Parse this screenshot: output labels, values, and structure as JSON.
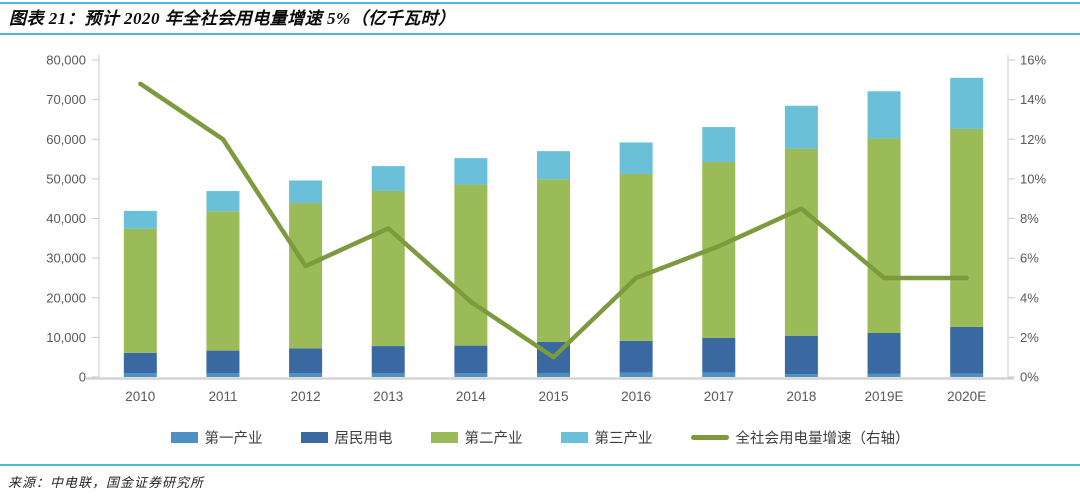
{
  "header": {
    "title": "图表 21：预计 2020 年全社会用电量增速 5%（亿千瓦时）"
  },
  "footer": {
    "source": "来源：中电联，国金证券研究所"
  },
  "style": {
    "accent_rule_color": "#4cb9d8",
    "axis_text_color": "#595959",
    "axis_line_color": "#c9c9c9",
    "baseline_color": "#d4d4d4",
    "legend_text_color": "#3f3f3f"
  },
  "chart_data": {
    "type": "combo",
    "bar_mode": "stacked",
    "title": "预计2020年全社会用电量增速5%",
    "unit": "亿千瓦时",
    "grid": false,
    "legend_position": "bottom",
    "categories": [
      "2010",
      "2011",
      "2012",
      "2013",
      "2014",
      "2015",
      "2016",
      "2017",
      "2018",
      "2019E",
      "2020E"
    ],
    "series": [
      {
        "name": "第一产业",
        "type": "bar",
        "color": "#4e90c4",
        "values": [
          984,
          1015,
          1013,
          1014,
          994,
          1020,
          1075,
          1155,
          728,
          780,
          850
        ]
      },
      {
        "name": "居民用电",
        "type": "bar",
        "color": "#3a68a0",
        "values": [
          5125,
          5646,
          6219,
          6793,
          6928,
          7880,
          8054,
          8695,
          9685,
          10320,
          11800
        ]
      },
      {
        "name": "第二产业",
        "type": "bar",
        "color": "#9bbb59",
        "values": [
          31318,
          35185,
          36669,
          39143,
          40650,
          41000,
          42108,
          44413,
          47235,
          49100,
          49950
        ]
      },
      {
        "name": "第三产业",
        "type": "bar",
        "color": "#6ac0d8",
        "values": [
          4497,
          5082,
          5690,
          6273,
          6660,
          7100,
          7961,
          8814,
          10801,
          11900,
          12900
        ]
      },
      {
        "name": "全社会用电量增速（右轴）",
        "type": "line",
        "axis": "right",
        "color": "#7d9a3e",
        "values": [
          14.8,
          12.0,
          5.6,
          7.5,
          3.8,
          1.0,
          5.0,
          6.6,
          8.5,
          5.0,
          5.0
        ]
      }
    ],
    "bar_totals": [
      41924,
      46928,
      49591,
      53223,
      55232,
      57000,
      59198,
      63077,
      68449,
      72100,
      75500
    ],
    "left_axis": {
      "min": 0,
      "max": 80000,
      "step": 10000,
      "labels": [
        "0",
        "10,000",
        "20,000",
        "30,000",
        "40,000",
        "50,000",
        "60,000",
        "70,000",
        "80,000"
      ]
    },
    "right_axis": {
      "min": 0,
      "max": 16,
      "step": 2,
      "labels": [
        "0%",
        "2%",
        "4%",
        "6%",
        "8%",
        "10%",
        "12%",
        "14%",
        "16%"
      ]
    }
  }
}
